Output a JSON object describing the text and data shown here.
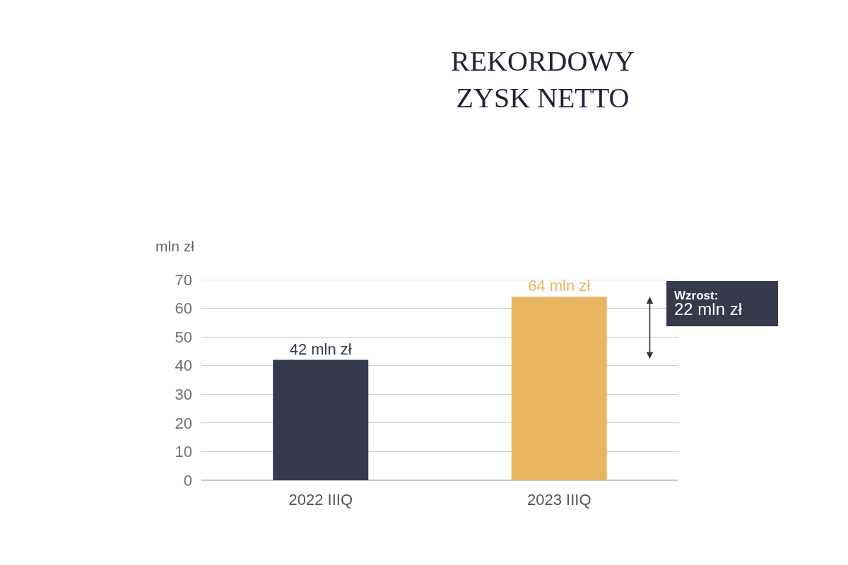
{
  "chart_data": {
    "type": "bar",
    "title": "REKORDOWY\nZYSK NETTO",
    "ylabel": "mln zł",
    "categories": [
      "2022 IIIQ",
      "2023 IIIQ"
    ],
    "values": [
      42,
      64
    ],
    "colors": [
      "#363a4b",
      "#e8b660"
    ],
    "value_labels": [
      "42 mln zł",
      "64 mln zł"
    ],
    "ylim": [
      0,
      70
    ],
    "yticks": [
      0,
      10,
      20,
      30,
      40,
      50,
      60,
      70
    ],
    "grid": "y",
    "annotations": [
      "Wzrost:\n22 mln zł"
    ]
  }
}
